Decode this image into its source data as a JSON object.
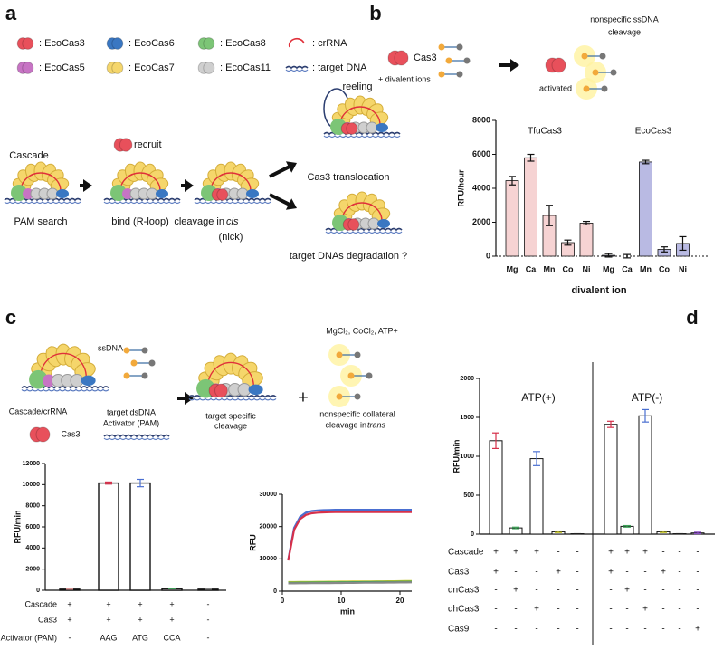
{
  "panel_labels": [
    "a",
    "b",
    "c",
    "d"
  ],
  "panel_a": {
    "legend": [
      ": EcoCas3",
      ": EcoCas6",
      ": EcoCas8",
      ": crRNA",
      ": EcoCas5",
      ": EcoCas7",
      ": EcoCas11",
      ": target DNA"
    ],
    "cascade": "Cascade",
    "recruit": "recruit",
    "pam_search": "PAM search",
    "bind": "bind (R-loop)",
    "cleavage": "cleavage in ",
    "cis": "cis",
    "nick": "(nick)",
    "reeling": "reeling",
    "translocation": "Cas3 translocation",
    "degradation": "target DNAs degradation ?"
  },
  "panel_b": {
    "cas3": "Cas3",
    "ions": "+ divalent ions",
    "activated": "activated",
    "cleavage": [
      "nonspecific ssDNA",
      "cleavage"
    ]
  },
  "panel_c": {
    "cascade": "Cascade/crRNA",
    "cas3": "Cas3",
    "ssdna": "ssDNA",
    "activator": [
      "target dsDNA",
      "Activator (PAM)"
    ],
    "specific": [
      "target specific",
      "cleavage"
    ],
    "plus": "+",
    "conditions": "MgCl₂, CoCl₂, ATP+",
    "collateral": "nonspecific collateral",
    "collateral2": "cleavage in ",
    "trans": "trans"
  },
  "chart_data": [
    {
      "type": "bar",
      "ylabel": "RFU/hour",
      "xlabel": "divalent ion",
      "groups": [
        "TfuCas3",
        "EcoCas3"
      ],
      "categories": [
        "Mg",
        "Ca",
        "Mn",
        "Co",
        "Ni",
        "Mg",
        "Ca",
        "Mn",
        "Co",
        "Ni"
      ],
      "values": [
        4450,
        5800,
        2400,
        800,
        1950,
        50,
        0,
        5550,
        400,
        750
      ],
      "errors": [
        250,
        200,
        600,
        150,
        100,
        100,
        100,
        100,
        150,
        400
      ],
      "colors": [
        "#f6d3d3",
        "#f6d3d3",
        "#f6d3d3",
        "#f6d3d3",
        "#f6d3d3",
        "#b9bae3",
        "#b9bae3",
        "#b9bae3",
        "#b9bae3",
        "#b9bae3"
      ],
      "ylim": [
        0,
        8000
      ],
      "yticks": [
        0,
        2000,
        4000,
        6000,
        8000
      ]
    },
    {
      "type": "bar",
      "ylabel": "RFU/min",
      "values": [
        100,
        10150,
        10150,
        150,
        100
      ],
      "errors": [
        0,
        100,
        350,
        0,
        0
      ],
      "colors": [
        "#e79a9a",
        "#d6304a",
        "#4a6fd1",
        "#3fa35a",
        "#888888"
      ],
      "ylim": [
        0,
        12000
      ],
      "yticks": [
        0,
        2000,
        4000,
        6000,
        8000,
        10000,
        12000
      ],
      "rows": [
        {
          "label": "Cascade",
          "cells": [
            "+",
            "+",
            "+",
            "+",
            "-"
          ]
        },
        {
          "label": "Cas3",
          "cells": [
            "+",
            "+",
            "+",
            "+",
            "-"
          ]
        },
        {
          "label": "Activator (PAM)",
          "cells": [
            "-",
            "AAG",
            "ATG",
            "CCA",
            "-"
          ]
        }
      ]
    },
    {
      "type": "line",
      "ylabel": "RFU",
      "xlabel": "min",
      "x": [
        1,
        2,
        3,
        4,
        5,
        6,
        7,
        8,
        9,
        10,
        11,
        12,
        13,
        14,
        15,
        16,
        17,
        18,
        19,
        20,
        21,
        22
      ],
      "series": [
        {
          "color": "#4a6fd1",
          "values": [
            9700,
            19600,
            23000,
            24300,
            24800,
            25000,
            25100,
            25150,
            25200,
            25200,
            25200,
            25200,
            25200,
            25200,
            25200,
            25200,
            25200,
            25200,
            25200,
            25200,
            25200,
            25200
          ]
        },
        {
          "color": "#d6304a",
          "values": [
            9500,
            19000,
            22300,
            23600,
            24100,
            24300,
            24400,
            24450,
            24500,
            24500,
            24500,
            24500,
            24500,
            24500,
            24500,
            24500,
            24500,
            24500,
            24500,
            24500,
            24500,
            24500
          ]
        },
        {
          "color": "#c8c82a",
          "values": [
            2800,
            2815,
            2830,
            2845,
            2860,
            2875,
            2890,
            2905,
            2920,
            2935,
            2950,
            2965,
            2980,
            2995,
            3010,
            3025,
            3040,
            3055,
            3070,
            3085,
            3100,
            3115
          ]
        },
        {
          "color": "#3fa35a",
          "values": [
            2600,
            2615,
            2630,
            2645,
            2660,
            2675,
            2690,
            2705,
            2720,
            2735,
            2750,
            2765,
            2780,
            2795,
            2810,
            2825,
            2840,
            2855,
            2870,
            2885,
            2900,
            2915
          ]
        },
        {
          "color": "#888888",
          "values": [
            2400,
            2415,
            2430,
            2445,
            2460,
            2475,
            2490,
            2505,
            2520,
            2535,
            2550,
            2565,
            2580,
            2595,
            2610,
            2625,
            2640,
            2655,
            2670,
            2685,
            2700,
            2715
          ]
        }
      ],
      "xlim": [
        0,
        22
      ],
      "xticks": [
        0,
        10,
        20
      ],
      "ylim": [
        0,
        30000
      ],
      "yticks": [
        0,
        10000,
        20000,
        30000
      ]
    },
    {
      "type": "bar",
      "ylabel": "RFU/min",
      "groups": [
        {
          "label": "ATP(+)",
          "values": [
            1200,
            80,
            970,
            30,
            5
          ],
          "errors": [
            100,
            10,
            90,
            10,
            0
          ],
          "colors": [
            "#d6304a",
            "#3fa35a",
            "#4a6fd1",
            "#c8c82a",
            "#222222"
          ]
        },
        {
          "label": "ATP(-)",
          "values": [
            1410,
            100,
            1520,
            30,
            5,
            15
          ],
          "errors": [
            40,
            10,
            80,
            10,
            0,
            10
          ],
          "colors": [
            "#d6304a",
            "#3fa35a",
            "#4a6fd1",
            "#c8c82a",
            "#222222",
            "#8a4fc4"
          ]
        }
      ],
      "ylim": [
        0,
        2000
      ],
      "yticks": [
        0,
        500,
        1000,
        1500,
        2000
      ],
      "rows": [
        {
          "label": "Cascade",
          "cells": [
            "+",
            "+",
            "+",
            "-",
            "-",
            "+",
            "+",
            "+",
            "-",
            "-",
            "-"
          ]
        },
        {
          "label": "Cas3",
          "cells": [
            "+",
            "-",
            "-",
            "+",
            "-",
            "+",
            "-",
            "-",
            "+",
            "-",
            "-"
          ]
        },
        {
          "label": "dnCas3",
          "cells": [
            "-",
            "+",
            "-",
            "-",
            "-",
            "-",
            "+",
            "-",
            "-",
            "-",
            "-"
          ]
        },
        {
          "label": "dhCas3",
          "cells": [
            "-",
            "-",
            "+",
            "-",
            "-",
            "-",
            "-",
            "+",
            "-",
            "-",
            "-"
          ]
        },
        {
          "label": "Cas9",
          "cells": [
            "-",
            "-",
            "-",
            "-",
            "-",
            "-",
            "-",
            "-",
            "-",
            "-",
            "+"
          ]
        }
      ]
    }
  ]
}
